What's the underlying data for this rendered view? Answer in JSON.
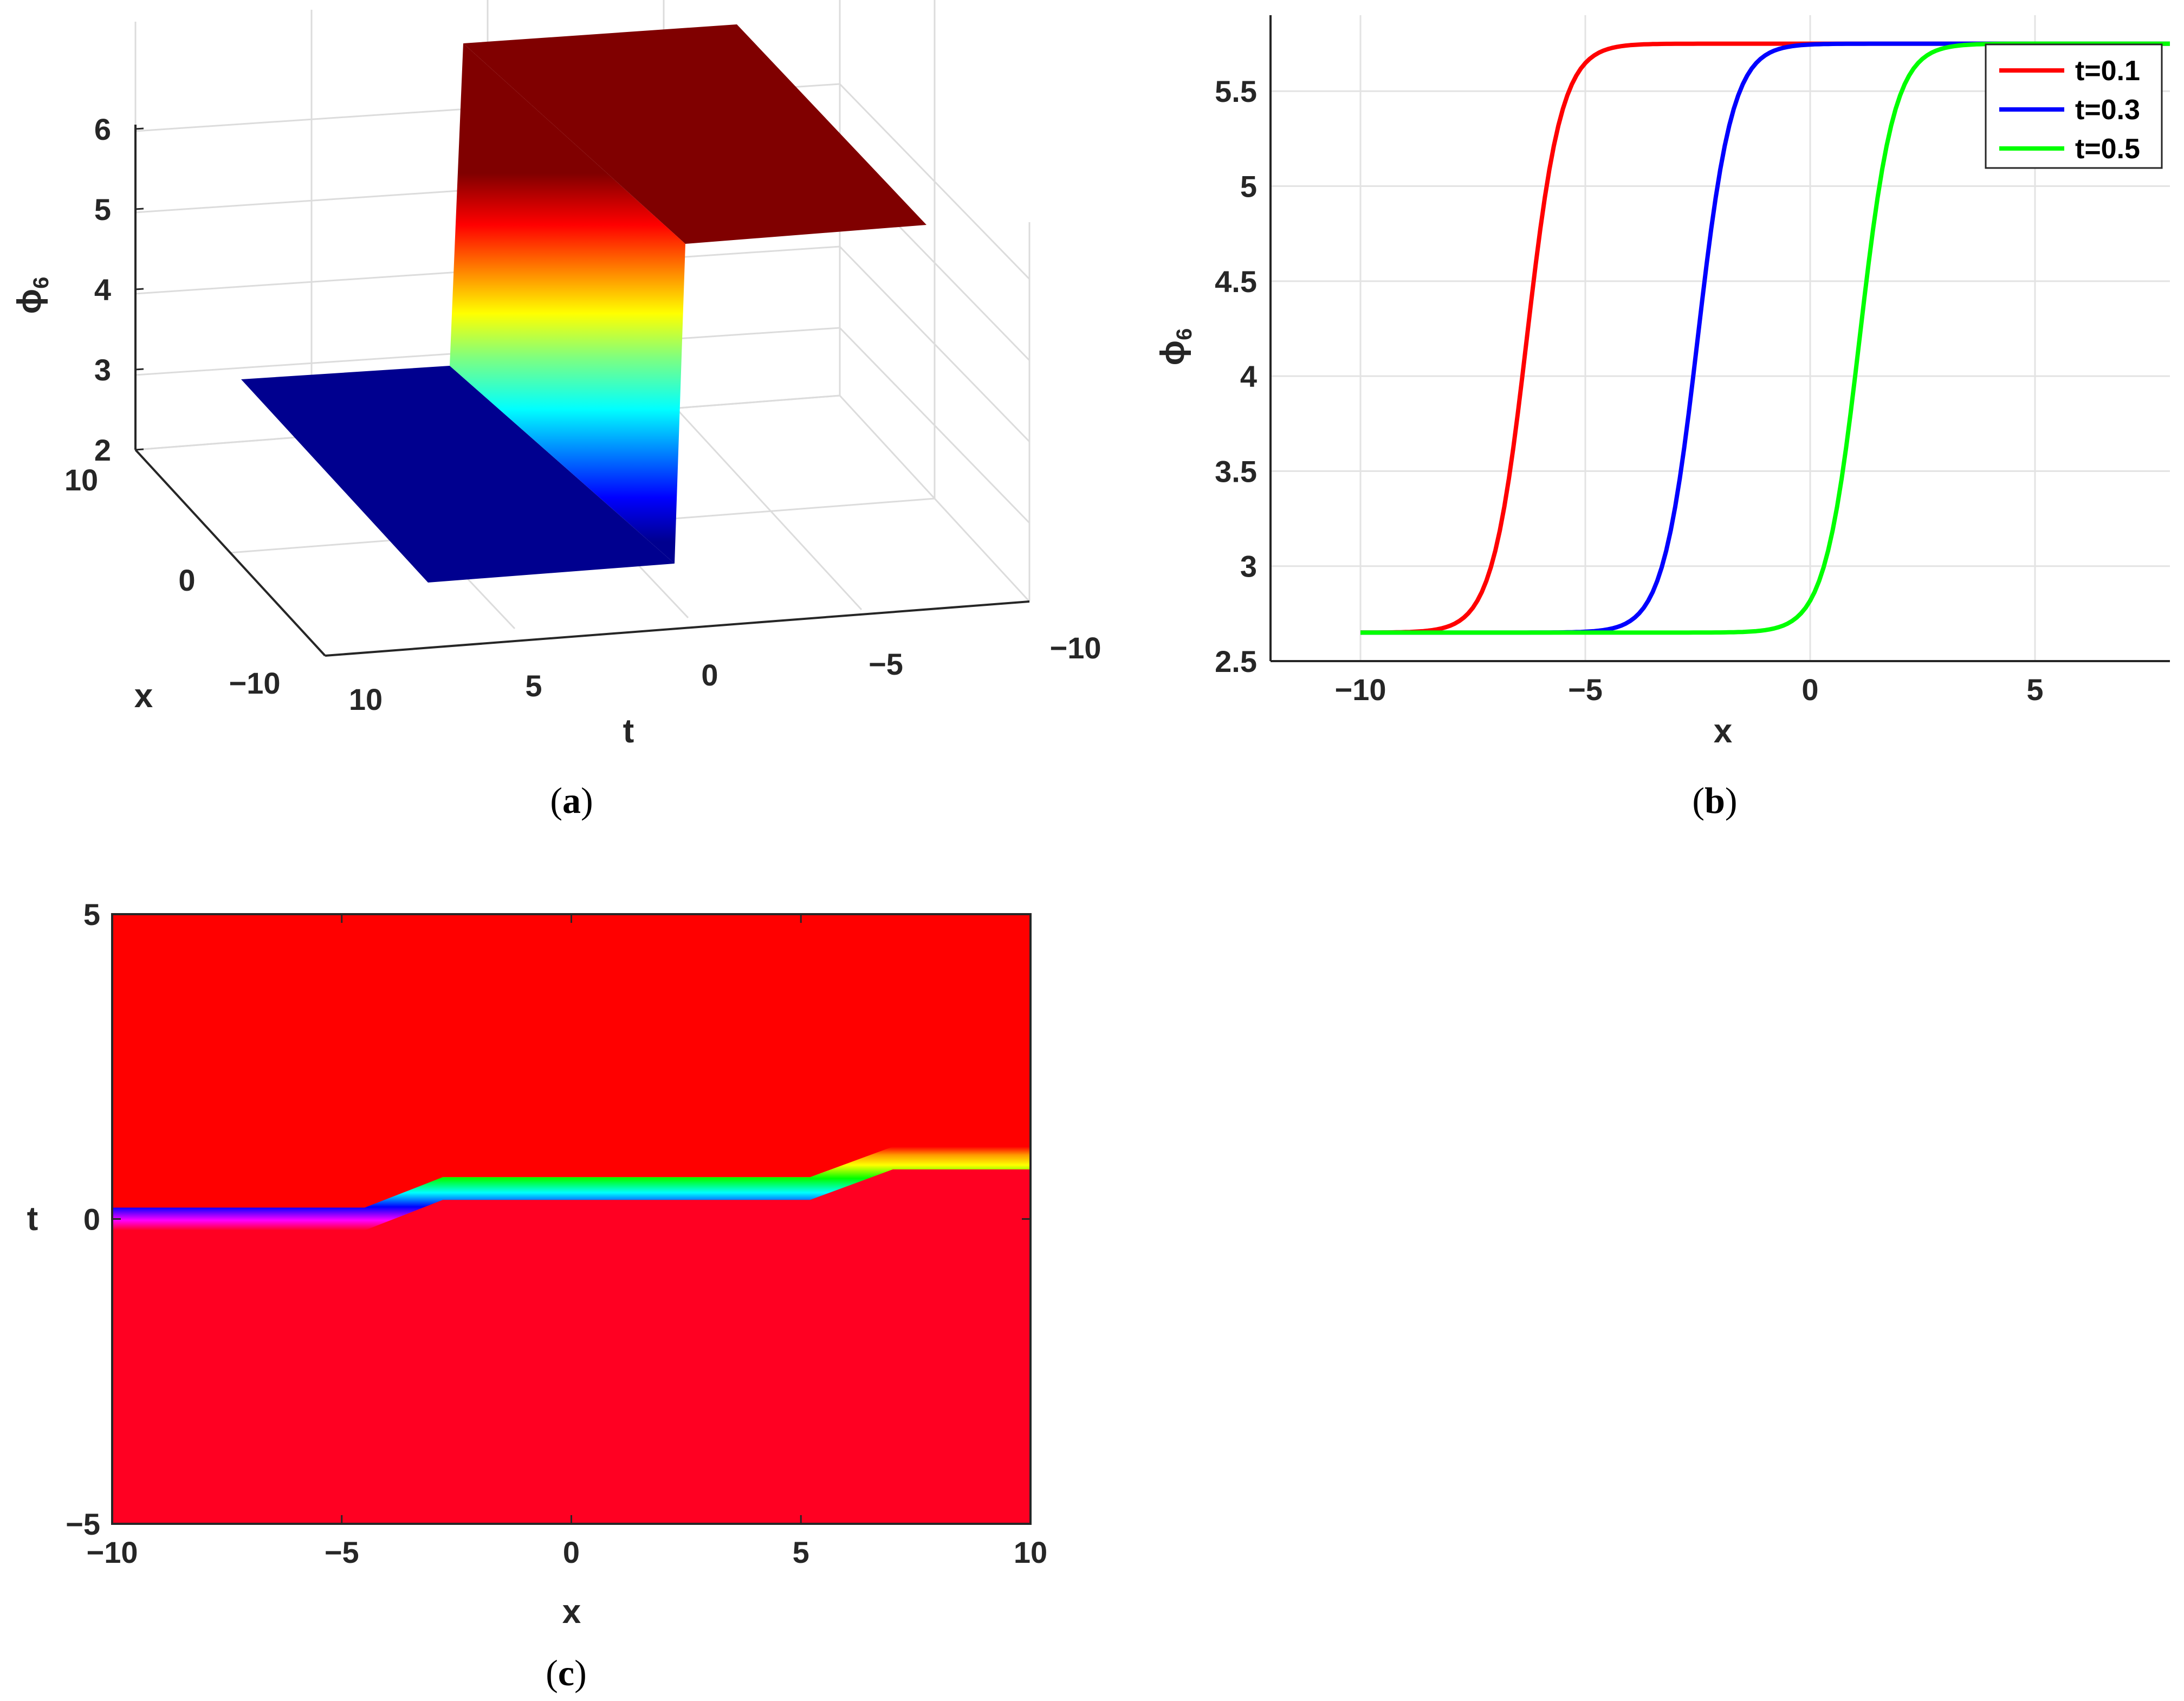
{
  "panels": {
    "a": {
      "label": "a"
    },
    "b": {
      "label": "b"
    },
    "c": {
      "label": "c"
    }
  },
  "chart_data": [
    {
      "id": "a",
      "type": "surface",
      "xlabel": "t",
      "ylabel": "x",
      "zlabel": "ϕ",
      "zlabel_sub": "6",
      "x_ticks": [
        "10",
        "5",
        "0",
        "−5",
        "−10"
      ],
      "y_ticks": [
        "10",
        "0",
        "−10"
      ],
      "z_ticks": [
        "2",
        "3",
        "4",
        "5",
        "6"
      ],
      "z_low": 2.65,
      "z_high": 6.85,
      "colormap": "jet",
      "grid": true
    },
    {
      "id": "b",
      "type": "line",
      "xlabel": "x",
      "ylabel": "ϕ",
      "ylabel_sub": "6",
      "xlim": [
        -12,
        8
      ],
      "ylim": [
        2.5,
        5.9
      ],
      "x_ticks": [
        "−10",
        "−5",
        "0",
        "5"
      ],
      "y_ticks": [
        "2.5",
        "3",
        "3.5",
        "4",
        "4.5",
        "5",
        "5.5"
      ],
      "grid": true,
      "legend_position": "top-right",
      "series": [
        {
          "name": "t=0.1",
          "color": "#ff0000",
          "center": -6.3
        },
        {
          "name": "t=0.3",
          "color": "#0000ff",
          "center": -2.5
        },
        {
          "name": "t=0.5",
          "color": "#00ff00",
          "center": 1.1
        }
      ],
      "low": 2.65,
      "high": 5.75
    },
    {
      "id": "c",
      "type": "heatmap",
      "xlabel": "x",
      "ylabel": "t",
      "xlim": [
        -10,
        10
      ],
      "ylim": [
        -5,
        5
      ],
      "x_ticks": [
        "−10",
        "−5",
        "0",
        "5",
        "10"
      ],
      "y_ticks": [
        "−5",
        "0",
        "5"
      ],
      "front_t": [
        [
          -10,
          0.0
        ],
        [
          -4.5,
          0.0
        ],
        [
          -2.8,
          0.5
        ],
        [
          5.2,
          0.5
        ],
        [
          7.0,
          1.0
        ],
        [
          10,
          1.0
        ]
      ],
      "upper_color": "#ff0000",
      "lower_color": "#ff0022"
    }
  ]
}
